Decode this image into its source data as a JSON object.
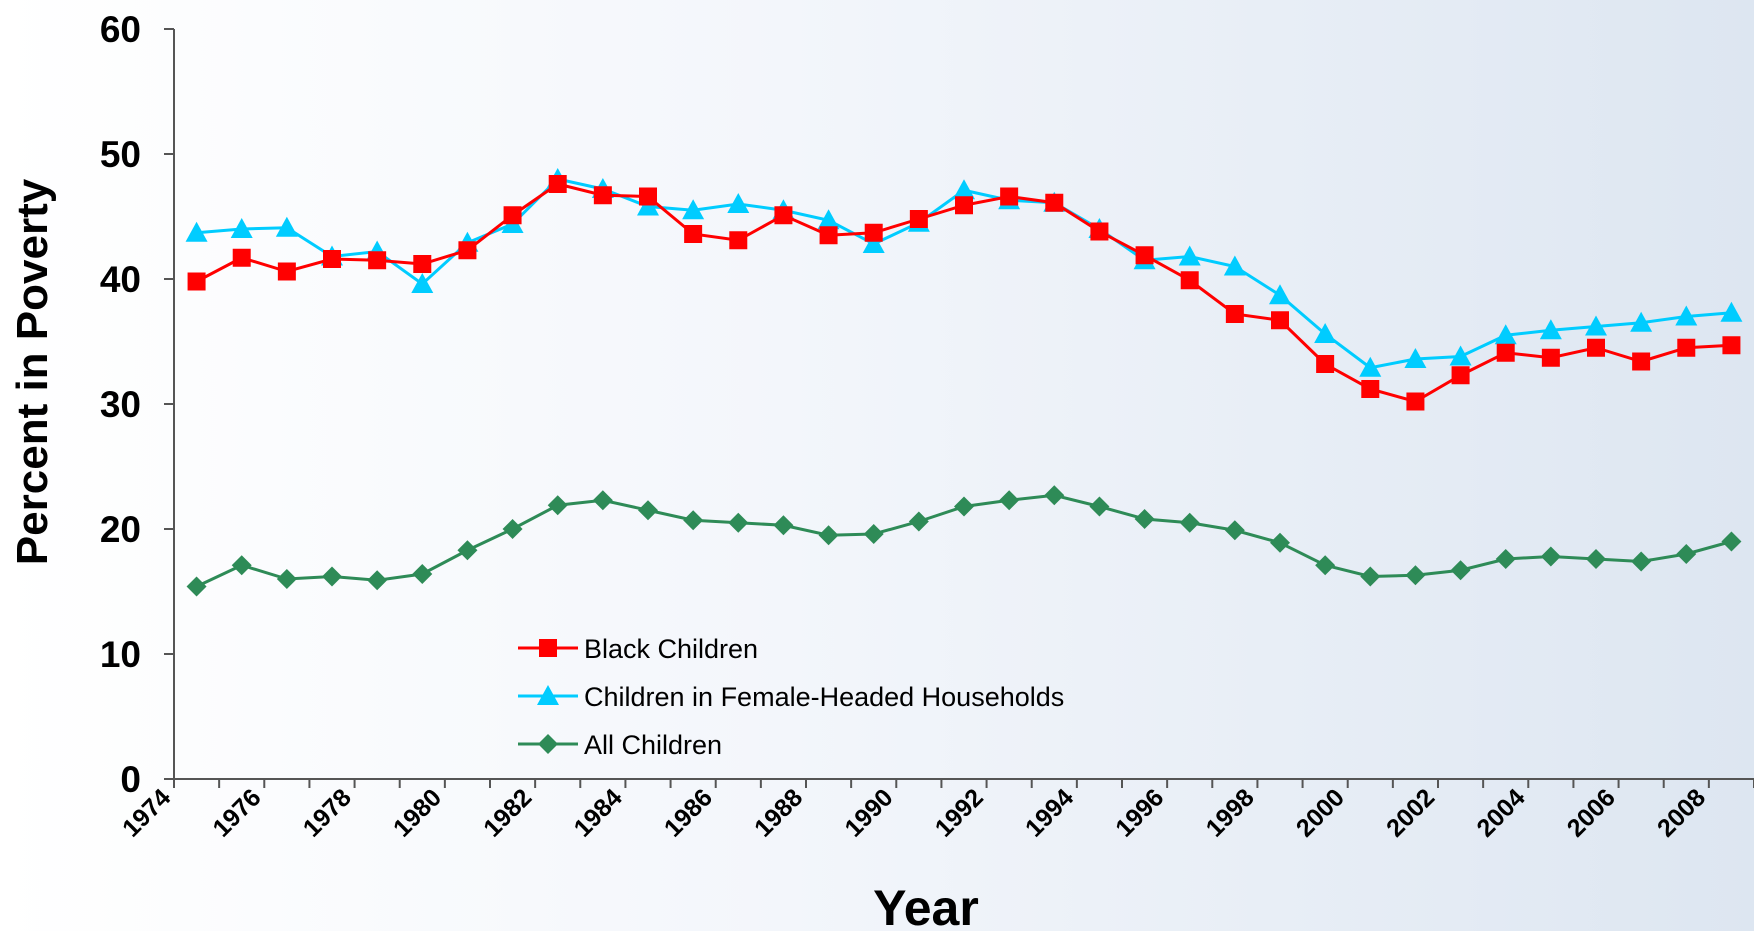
{
  "chart_data": {
    "type": "line",
    "title": "",
    "xlabel": "Year",
    "ylabel": "Percent in Poverty",
    "ylim": [
      0,
      60
    ],
    "yticks": [
      0,
      10,
      20,
      30,
      40,
      50,
      60
    ],
    "xlim": [
      1974,
      2009
    ],
    "xtick_labels": [
      "1974",
      "1976",
      "1978",
      "1980",
      "1982",
      "1984",
      "1986",
      "1988",
      "1990",
      "1992",
      "1994",
      "1996",
      "1998",
      "2000",
      "2002",
      "2004",
      "2006",
      "2008"
    ],
    "grid": false,
    "legend_position": "lower-left",
    "x": [
      1974,
      1975,
      1976,
      1977,
      1978,
      1979,
      1980,
      1981,
      1982,
      1983,
      1984,
      1985,
      1986,
      1987,
      1988,
      1989,
      1990,
      1991,
      1992,
      1993,
      1994,
      1995,
      1996,
      1997,
      1998,
      1999,
      2000,
      2001,
      2002,
      2003,
      2004,
      2005,
      2006,
      2007,
      2008
    ],
    "series": [
      {
        "name": "Black Children",
        "color": "#ff0000",
        "marker": "square",
        "values": [
          39.8,
          41.7,
          40.6,
          41.6,
          41.5,
          41.2,
          42.3,
          45.1,
          47.6,
          46.7,
          46.6,
          43.6,
          43.1,
          45.1,
          43.5,
          43.7,
          44.8,
          45.9,
          46.6,
          46.1,
          43.8,
          41.9,
          39.9,
          37.2,
          36.7,
          33.2,
          31.2,
          30.2,
          32.3,
          34.1,
          33.7,
          34.5,
          33.4,
          34.5,
          34.7
        ]
      },
      {
        "name": "Children in Female-Headed Households",
        "color": "#00ccff",
        "marker": "triangle",
        "values": [
          43.7,
          44.0,
          44.1,
          41.8,
          42.2,
          39.6,
          42.9,
          44.4,
          48.0,
          47.2,
          45.8,
          45.5,
          46.0,
          45.5,
          44.7,
          42.8,
          44.5,
          47.1,
          46.3,
          46.1,
          44.0,
          41.5,
          41.8,
          41.0,
          38.7,
          35.6,
          32.9,
          33.6,
          33.8,
          35.5,
          35.9,
          36.2,
          36.5,
          37.0,
          37.3
        ]
      },
      {
        "name": "All Children",
        "color": "#2e8b57",
        "marker": "diamond",
        "values": [
          15.4,
          17.1,
          16.0,
          16.2,
          15.9,
          16.4,
          18.3,
          20.0,
          21.9,
          22.3,
          21.5,
          20.7,
          20.5,
          20.3,
          19.5,
          19.6,
          20.6,
          21.8,
          22.3,
          22.7,
          21.8,
          20.8,
          20.5,
          19.9,
          18.9,
          17.1,
          16.2,
          16.3,
          16.7,
          17.6,
          17.8,
          17.6,
          17.4,
          18.0,
          19.0
        ]
      }
    ]
  }
}
